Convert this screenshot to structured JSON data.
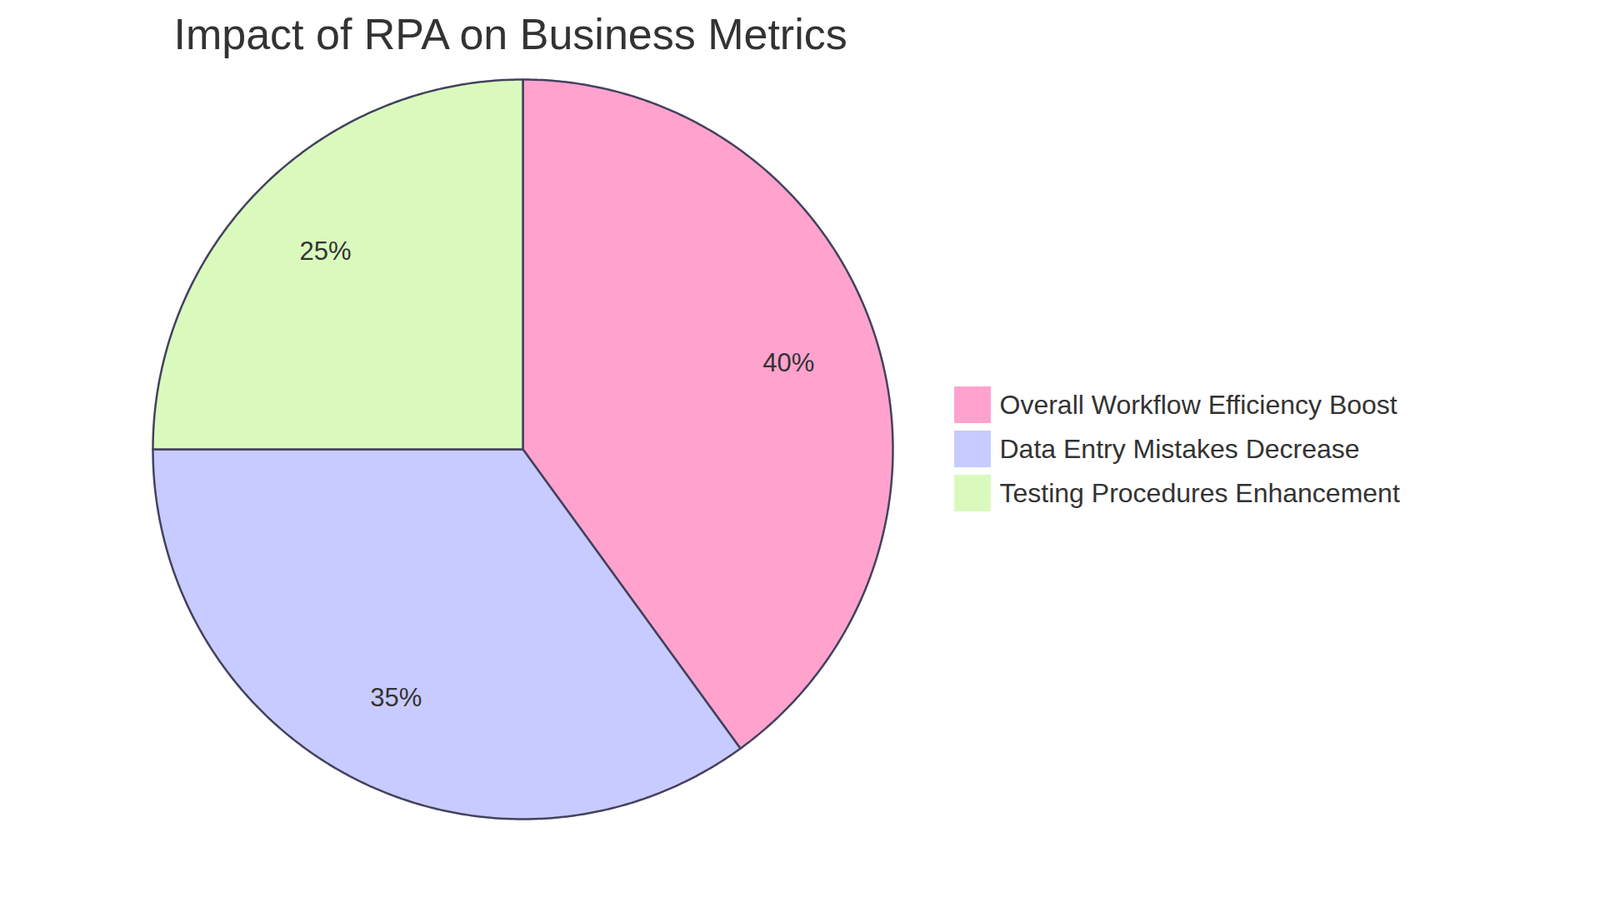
{
  "chart_data": {
    "type": "pie",
    "title": "Impact of RPA on Business Metrics",
    "categories": [
      "Overall Workflow Efficiency Boost",
      "Data Entry Mistakes Decrease",
      "Testing Procedures Enhancement"
    ],
    "values": [
      40,
      35,
      25
    ],
    "value_labels": [
      "40%",
      "35%",
      "25%"
    ],
    "colors": [
      "#ffa3ce",
      "#c8cbff",
      "#dafabd"
    ],
    "data_labels": true,
    "legend": "right"
  }
}
